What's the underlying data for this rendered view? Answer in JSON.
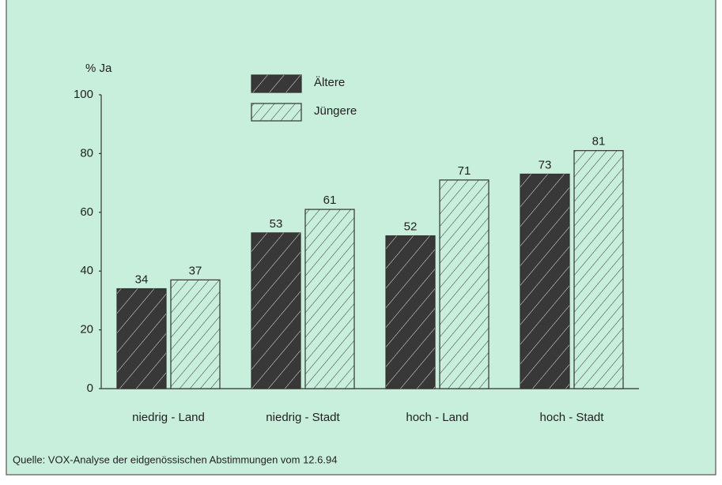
{
  "chart_data": {
    "type": "bar",
    "ylabel": "% Ja",
    "categories": [
      "niedrig - Land",
      "niedrig - Stadt",
      "hoch - Land",
      "hoch - Stadt"
    ],
    "series": [
      {
        "name": "Ältere",
        "color": "#383838",
        "values": [
          34,
          53,
          52,
          73
        ]
      },
      {
        "name": "Jüngere",
        "color": "#c8eedc",
        "values": [
          37,
          61,
          71,
          81
        ]
      }
    ],
    "ylim": [
      0,
      100
    ],
    "yticks": [
      0,
      20,
      40,
      60,
      80,
      100
    ],
    "grid": false,
    "legend": "top",
    "source": "Quelle: VOX-Analyse der eidgenössischen Abstimmungen vom 12.6.94"
  }
}
